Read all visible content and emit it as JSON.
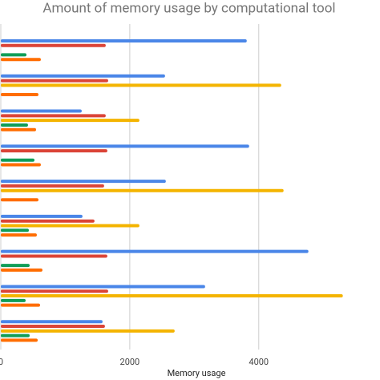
{
  "chart_data": {
    "type": "bar",
    "orientation": "horizontal",
    "title": "Amount of memory usage by computational tool",
    "x_label": "Memory usage",
    "categories": [
      null,
      null,
      null,
      null,
      null,
      null,
      null,
      null,
      null
    ],
    "series": [
      {
        "color": "#4a86e8",
        "values": [
          3814,
          2547,
          1255,
          3851,
          2559,
          1267,
          4770,
          3168,
          1578
        ]
      },
      {
        "color": "#db4437",
        "values": [
          1627,
          1665,
          1627,
          1652,
          1602,
          1453,
          1652,
          1665,
          1615
        ]
      },
      {
        "color": "#f4b400",
        "values": [
          null,
          4348,
          2149,
          null,
          4385,
          2149,
          null,
          5304,
          2696
        ]
      },
      {
        "color": "#0f9d58",
        "values": [
          398,
          null,
          422,
          522,
          null,
          435,
          447,
          385,
          447
        ]
      },
      {
        "color": "#ff6d00",
        "values": [
          621,
          584,
          547,
          621,
          584,
          559,
          646,
          609,
          572
        ]
      }
    ],
    "xlim": [
      0,
      5880
    ],
    "xticks": [
      0,
      2000,
      4000
    ],
    "grid": true
  }
}
